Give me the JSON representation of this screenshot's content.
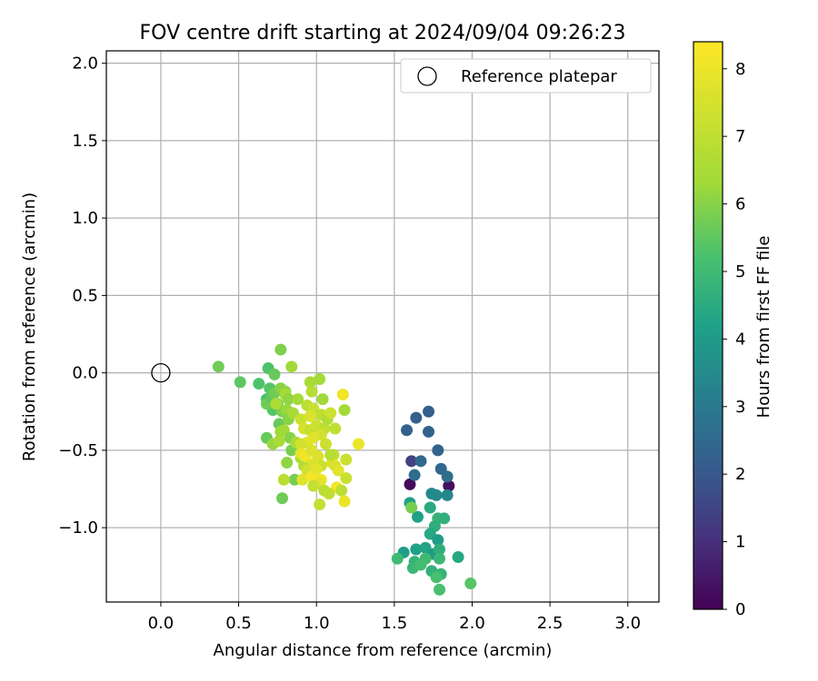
{
  "chart_data": {
    "type": "scatter",
    "title": "FOV centre drift starting at 2024/09/04 09:26:23",
    "xlabel": "Angular distance from reference (arcmin)",
    "ylabel": "Rotation from reference (arcmin)",
    "xlim": [
      -0.35,
      3.2
    ],
    "ylim": [
      -1.48,
      2.08
    ],
    "xticks": [
      0.0,
      0.5,
      1.0,
      1.5,
      2.0,
      2.5,
      3.0
    ],
    "xtick_labels": [
      "0.0",
      "0.5",
      "1.0",
      "1.5",
      "2.0",
      "2.5",
      "3.0"
    ],
    "yticks": [
      -1.0,
      -0.5,
      0.0,
      0.5,
      1.0,
      1.5,
      2.0
    ],
    "ytick_labels": [
      "−1.0",
      "−0.5",
      "0.0",
      "0.5",
      "1.0",
      "1.5",
      "2.0"
    ],
    "grid": true,
    "legend": {
      "placement": "upper right",
      "entries": [
        "Reference platepar"
      ]
    },
    "colorbar": {
      "label": "Hours from first FF file",
      "colormap": "viridis",
      "range": [
        0,
        8.4
      ],
      "ticks": [
        0,
        1,
        2,
        3,
        4,
        5,
        6,
        7,
        8
      ],
      "tick_labels": [
        "0",
        "1",
        "2",
        "3",
        "4",
        "5",
        "6",
        "7",
        "8"
      ]
    },
    "reference_point": {
      "x": 0.0,
      "y": 0.0
    },
    "series": [
      {
        "points": [
          [
            1.6,
            -0.72,
            0.2
          ],
          [
            1.85,
            -0.73,
            0.3
          ],
          [
            1.61,
            -0.57,
            1.4
          ],
          [
            1.64,
            -0.29,
            2.2
          ],
          [
            1.72,
            -0.25,
            2.2
          ],
          [
            1.58,
            -0.37,
            2.3
          ],
          [
            1.72,
            -0.38,
            2.3
          ],
          [
            1.78,
            -0.5,
            2.3
          ],
          [
            1.67,
            -0.57,
            2.5
          ],
          [
            1.8,
            -0.62,
            2.5
          ],
          [
            1.63,
            -0.66,
            2.6
          ],
          [
            1.84,
            -0.67,
            2.6
          ],
          [
            1.74,
            -0.78,
            3.4
          ],
          [
            1.84,
            -0.79,
            3.4
          ],
          [
            1.77,
            -0.79,
            3.5
          ],
          [
            1.6,
            -0.84,
            4.2
          ],
          [
            1.65,
            -0.93,
            4.2
          ],
          [
            1.73,
            -0.87,
            4.5
          ],
          [
            1.78,
            -0.94,
            4.8
          ],
          [
            1.82,
            -0.94,
            4.7
          ],
          [
            1.76,
            -0.99,
            4.6
          ],
          [
            1.73,
            -1.04,
            4.4
          ],
          [
            1.78,
            -1.08,
            4.0
          ],
          [
            1.56,
            -1.16,
            4.1
          ],
          [
            1.64,
            -1.14,
            4.2
          ],
          [
            1.7,
            -1.13,
            4.3
          ],
          [
            1.75,
            -1.17,
            4.0
          ],
          [
            1.79,
            -1.14,
            4.6
          ],
          [
            1.91,
            -1.19,
            4.4
          ],
          [
            1.52,
            -1.2,
            5.0
          ],
          [
            1.63,
            -1.22,
            4.8
          ],
          [
            1.7,
            -1.2,
            5.0
          ],
          [
            1.79,
            -1.2,
            4.9
          ],
          [
            1.62,
            -1.26,
            4.9
          ],
          [
            1.67,
            -1.24,
            5.1
          ],
          [
            1.74,
            -1.28,
            4.7
          ],
          [
            1.8,
            -1.3,
            4.8
          ],
          [
            1.77,
            -1.32,
            5.2
          ],
          [
            1.99,
            -1.36,
            5.4
          ],
          [
            1.79,
            -1.4,
            5.2
          ],
          [
            1.61,
            -0.87,
            5.8
          ],
          [
            0.37,
            0.04,
            5.7
          ],
          [
            0.51,
            -0.06,
            5.5
          ],
          [
            0.63,
            -0.07,
            5.3
          ],
          [
            0.69,
            0.03,
            5.3
          ],
          [
            0.73,
            -0.01,
            5.6
          ],
          [
            0.77,
            0.15,
            5.9
          ],
          [
            0.7,
            -0.1,
            5.4
          ],
          [
            0.74,
            -0.12,
            5.3
          ],
          [
            0.68,
            -0.17,
            5.2
          ],
          [
            0.72,
            -0.24,
            5.4
          ],
          [
            0.75,
            -0.2,
            5.8
          ],
          [
            0.68,
            -0.2,
            5.7
          ],
          [
            0.71,
            -0.16,
            5.5
          ],
          [
            0.73,
            -0.13,
            5.7
          ],
          [
            0.77,
            -0.1,
            6.0
          ],
          [
            0.8,
            -0.12,
            6.1
          ],
          [
            0.84,
            0.04,
            6.3
          ],
          [
            0.78,
            -0.25,
            5.9
          ],
          [
            0.76,
            -0.33,
            5.6
          ],
          [
            0.81,
            -0.24,
            6.2
          ],
          [
            0.82,
            -0.3,
            6.0
          ],
          [
            0.79,
            -0.37,
            6.3
          ],
          [
            0.83,
            -0.42,
            6.0
          ],
          [
            0.84,
            -0.5,
            5.8
          ],
          [
            0.68,
            -0.42,
            5.6
          ],
          [
            0.72,
            -0.46,
            6.2
          ],
          [
            0.76,
            -0.44,
            6.5
          ],
          [
            0.77,
            -0.38,
            6.3
          ],
          [
            0.74,
            -0.2,
            6.6
          ],
          [
            0.8,
            -0.14,
            6.4
          ],
          [
            0.82,
            -0.17,
            6.1
          ],
          [
            0.85,
            -0.26,
            6.5
          ],
          [
            0.88,
            -0.17,
            6.4
          ],
          [
            0.81,
            -0.58,
            6.1
          ],
          [
            0.86,
            -0.69,
            5.8
          ],
          [
            0.78,
            -0.81,
            5.7
          ],
          [
            0.79,
            -0.69,
            6.9
          ],
          [
            0.87,
            -0.45,
            6.5
          ],
          [
            0.9,
            -0.55,
            6.6
          ],
          [
            0.92,
            -0.6,
            6.7
          ],
          [
            0.96,
            -0.06,
            6.5
          ],
          [
            1.02,
            -0.04,
            6.4
          ],
          [
            0.97,
            -0.12,
            6.8
          ],
          [
            1.04,
            -0.17,
            6.3
          ],
          [
            0.94,
            -0.21,
            6.9
          ],
          [
            0.98,
            -0.23,
            7.2
          ],
          [
            1.03,
            -0.27,
            7.0
          ],
          [
            0.9,
            -0.3,
            7.2
          ],
          [
            0.92,
            -0.36,
            7.5
          ],
          [
            0.96,
            -0.37,
            7.1
          ],
          [
            1.0,
            -0.34,
            7.3
          ],
          [
            1.05,
            -0.36,
            7.0
          ],
          [
            1.07,
            -0.3,
            6.7
          ],
          [
            1.09,
            -0.26,
            7.3
          ],
          [
            1.12,
            -0.36,
            7.0
          ],
          [
            1.03,
            -0.4,
            7.4
          ],
          [
            0.98,
            -0.42,
            7.7
          ],
          [
            0.94,
            -0.45,
            7.8
          ],
          [
            0.9,
            -0.46,
            7.4
          ],
          [
            0.9,
            -0.52,
            7.9
          ],
          [
            0.93,
            -0.54,
            8.1
          ],
          [
            0.97,
            -0.5,
            7.6
          ],
          [
            1.01,
            -0.54,
            7.6
          ],
          [
            1.03,
            -0.6,
            7.2
          ],
          [
            0.98,
            -0.59,
            7.6
          ],
          [
            0.94,
            -0.63,
            7.4
          ],
          [
            0.91,
            -0.69,
            7.7
          ],
          [
            0.97,
            -0.67,
            8.2
          ],
          [
            1.03,
            -0.69,
            8.1
          ],
          [
            1.02,
            -0.71,
            7.8
          ],
          [
            0.98,
            -0.73,
            7.1
          ],
          [
            1.05,
            -0.76,
            6.9
          ],
          [
            1.02,
            -0.85,
            7.1
          ],
          [
            1.11,
            -0.53,
            7.0
          ],
          [
            1.12,
            -0.6,
            7.4
          ],
          [
            1.14,
            -0.63,
            7.8
          ],
          [
            1.13,
            -0.74,
            8.2
          ],
          [
            1.16,
            -0.76,
            6.9
          ],
          [
            1.18,
            -0.83,
            8.0
          ],
          [
            1.19,
            -0.68,
            7.2
          ],
          [
            1.19,
            -0.56,
            7.3
          ],
          [
            1.18,
            -0.24,
            6.4
          ],
          [
            1.17,
            -0.14,
            8.1
          ],
          [
            1.27,
            -0.46,
            8.0
          ],
          [
            1.1,
            -0.58,
            7.6
          ],
          [
            1.08,
            -0.78,
            7.0
          ],
          [
            1.0,
            -0.62,
            7.8
          ],
          [
            0.96,
            -0.28,
            7.6
          ],
          [
            1.06,
            -0.46,
            7.3
          ],
          [
            1.09,
            -0.53,
            6.8
          ]
        ]
      }
    ]
  }
}
